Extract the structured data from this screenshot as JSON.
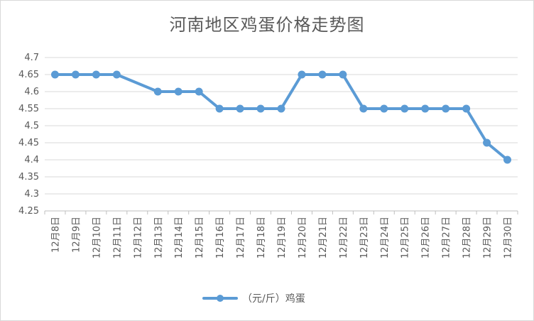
{
  "chart_data": {
    "type": "line",
    "title": "河南地区鸡蛋价格走势图",
    "categories": [
      "12月8日",
      "12月9日",
      "12月10日",
      "12月11日",
      "12月12日",
      "12月13日",
      "12月14日",
      "12月15日",
      "12月16日",
      "12月17日",
      "12月18日",
      "12月19日",
      "12月20日",
      "12月21日",
      "12月22日",
      "12月23日",
      "12月24日",
      "12月25日",
      "12月26日",
      "12月27日",
      "12月28日",
      "12月29日",
      "12月30日"
    ],
    "series": [
      {
        "name": "（元/斤）鸡蛋",
        "values": [
          4.65,
          4.65,
          4.65,
          4.65,
          null,
          4.6,
          4.6,
          4.6,
          4.55,
          4.55,
          4.55,
          4.55,
          4.65,
          4.65,
          4.65,
          4.55,
          4.55,
          4.55,
          4.55,
          4.55,
          4.55,
          4.45,
          4.4
        ],
        "color": "#5b9bd5"
      }
    ],
    "yticks": [
      "4.25",
      "4.3",
      "4.35",
      "4.4",
      "4.45",
      "4.5",
      "4.55",
      "4.6",
      "4.65",
      "4.7"
    ],
    "ylim": [
      4.25,
      4.7
    ],
    "grid": true,
    "legend_position": "bottom"
  }
}
